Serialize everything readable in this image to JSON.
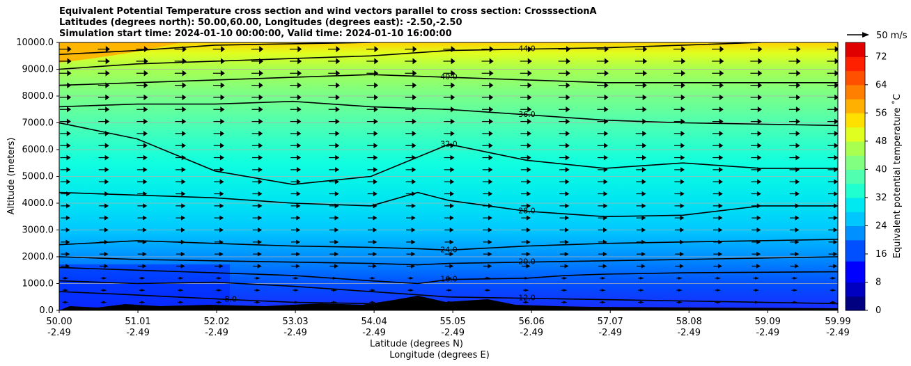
{
  "title": {
    "line1": "Equivalent Potential Temperature cross section and wind vectors parallel to cross section: CrosssectionA",
    "line2": "Latitudes (degrees north): 50.00,60.00, Longitudes (degrees east): -2.50,-2.50",
    "line3": "Simulation start time: 2024-01-10 00:00:00, Valid time: 2024-01-10 16:00:00"
  },
  "chart_data": {
    "type": "heatmap",
    "xlabel_lat": "Latitude (degrees N)",
    "xlabel_lon": "Longitude (degrees E)",
    "ylabel": "Altitude (meters)",
    "colorbar_label": "Equivalent potential temperature ˚C",
    "ylim": [
      0,
      10000
    ],
    "clim": [
      0,
      76
    ],
    "x_tick_lat": [
      "50.00",
      "51.01",
      "52.02",
      "53.03",
      "54.04",
      "55.05",
      "56.06",
      "57.07",
      "58.08",
      "59.09",
      "59.99"
    ],
    "x_tick_lon": [
      "-2.49",
      "-2.49",
      "-2.49",
      "-2.49",
      "-2.49",
      "-2.49",
      "-2.49",
      "-2.49",
      "-2.49",
      "-2.49",
      "-2.49"
    ],
    "y_ticks": [
      "0.0",
      "1000.0",
      "2000.0",
      "3000.0",
      "4000.0",
      "5000.0",
      "6000.0",
      "7000.0",
      "8000.0",
      "9000.0",
      "10000.0"
    ],
    "colorbar_ticks": [
      "0",
      "8",
      "16",
      "24",
      "32",
      "40",
      "48",
      "56",
      "64",
      "72"
    ],
    "quiver_key_label": "50 m/s",
    "grid": true,
    "contours": [
      {
        "level": "8.0",
        "label": "8.0",
        "points": [
          [
            50.0,
            700
          ],
          [
            50.8,
            600
          ],
          [
            51.5,
            500
          ],
          [
            52.2,
            400
          ],
          [
            53.0,
            300
          ],
          [
            54.0,
            250
          ]
        ]
      },
      {
        "level": "12.0",
        "label": "12.0",
        "points": [
          [
            50.0,
            1100
          ],
          [
            51.0,
            1000
          ],
          [
            52.0,
            1050
          ],
          [
            53.0,
            900
          ],
          [
            54.0,
            700
          ],
          [
            55.0,
            500
          ],
          [
            56.0,
            450
          ],
          [
            57.0,
            400
          ],
          [
            58.0,
            350
          ],
          [
            59.0,
            300
          ],
          [
            59.99,
            250
          ]
        ]
      },
      {
        "level": "16.0",
        "label": "16.0",
        "points": [
          [
            50.0,
            1600
          ],
          [
            51.0,
            1500
          ],
          [
            52.0,
            1400
          ],
          [
            53.0,
            1300
          ],
          [
            54.0,
            1100
          ],
          [
            54.6,
            1000
          ],
          [
            55.0,
            1150
          ],
          [
            56.0,
            1200
          ],
          [
            56.5,
            1300
          ],
          [
            57.0,
            1350
          ],
          [
            58.0,
            1400
          ],
          [
            59.0,
            1420
          ],
          [
            59.99,
            1440
          ]
        ]
      },
      {
        "level": "20.0",
        "label": "20.0",
        "points": [
          [
            50.0,
            2000
          ],
          [
            51.0,
            1900
          ],
          [
            52.0,
            1850
          ],
          [
            53.0,
            1800
          ],
          [
            54.0,
            1750
          ],
          [
            54.6,
            1700
          ],
          [
            55.0,
            1750
          ],
          [
            56.0,
            1800
          ],
          [
            57.0,
            1850
          ],
          [
            58.0,
            1900
          ],
          [
            59.0,
            1950
          ],
          [
            59.99,
            2000
          ]
        ]
      },
      {
        "level": "24.0",
        "label": "24.0",
        "points": [
          [
            50.0,
            2450
          ],
          [
            51.0,
            2600
          ],
          [
            52.0,
            2500
          ],
          [
            53.0,
            2400
          ],
          [
            54.0,
            2350
          ],
          [
            54.6,
            2300
          ],
          [
            55.0,
            2250
          ],
          [
            56.0,
            2400
          ],
          [
            57.0,
            2500
          ],
          [
            58.0,
            2550
          ],
          [
            59.0,
            2600
          ],
          [
            59.99,
            2650
          ]
        ]
      },
      {
        "level": "28.0",
        "label": "28.0",
        "points": [
          [
            50.0,
            4400
          ],
          [
            51.0,
            4300
          ],
          [
            52.0,
            4200
          ],
          [
            53.0,
            4000
          ],
          [
            54.0,
            3900
          ],
          [
            54.6,
            4400
          ],
          [
            55.0,
            4100
          ],
          [
            56.0,
            3700
          ],
          [
            57.0,
            3500
          ],
          [
            58.0,
            3550
          ],
          [
            59.0,
            3900
          ],
          [
            59.99,
            3900
          ]
        ]
      },
      {
        "level": "32.0",
        "label": "32.0",
        "points": [
          [
            50.0,
            7000
          ],
          [
            51.0,
            6400
          ],
          [
            52.0,
            5200
          ],
          [
            53.0,
            4700
          ],
          [
            54.0,
            5000
          ],
          [
            55.0,
            6200
          ],
          [
            56.0,
            5600
          ],
          [
            57.0,
            5300
          ],
          [
            58.0,
            5500
          ],
          [
            59.0,
            5300
          ],
          [
            59.99,
            5300
          ]
        ]
      },
      {
        "level": "36.0",
        "label": "36.0",
        "points": [
          [
            50.0,
            7600
          ],
          [
            51.0,
            7700
          ],
          [
            52.0,
            7700
          ],
          [
            53.0,
            7800
          ],
          [
            54.0,
            7600
          ],
          [
            55.0,
            7500
          ],
          [
            56.0,
            7300
          ],
          [
            57.0,
            7100
          ],
          [
            58.0,
            7000
          ],
          [
            59.0,
            6950
          ],
          [
            59.99,
            6900
          ]
        ]
      },
      {
        "level": "40.0",
        "label": "40.0",
        "points": [
          [
            50.0,
            8400
          ],
          [
            51.0,
            8500
          ],
          [
            52.0,
            8600
          ],
          [
            53.0,
            8700
          ],
          [
            54.0,
            8800
          ],
          [
            55.0,
            8700
          ],
          [
            56.0,
            8600
          ],
          [
            57.0,
            8500
          ],
          [
            58.0,
            8500
          ],
          [
            59.0,
            8500
          ],
          [
            59.99,
            8500
          ]
        ]
      },
      {
        "level": "44.0",
        "label": "44.0",
        "points": [
          [
            50.0,
            9000
          ],
          [
            51.0,
            9200
          ],
          [
            52.0,
            9300
          ],
          [
            53.0,
            9400
          ],
          [
            54.0,
            9500
          ],
          [
            55.0,
            9700
          ],
          [
            56.0,
            9750
          ],
          [
            57.0,
            9800
          ],
          [
            58.0,
            9900
          ],
          [
            59.0,
            10000
          ]
        ]
      },
      {
        "level": "48.0",
        "label": "48.0",
        "points": [
          [
            50.0,
            9550
          ],
          [
            51.0,
            9700
          ],
          [
            52.0,
            9900
          ],
          [
            53.0,
            9950
          ],
          [
            54.0,
            10000
          ]
        ]
      }
    ]
  }
}
